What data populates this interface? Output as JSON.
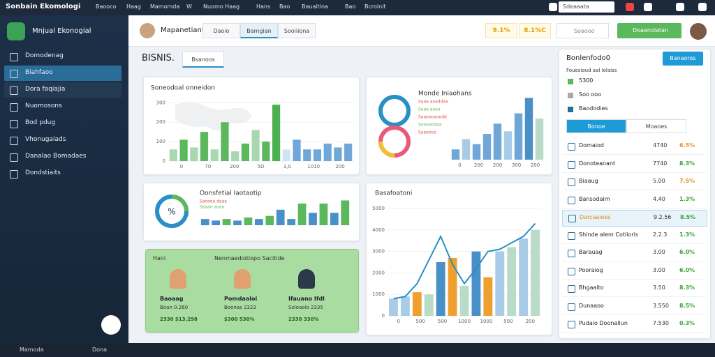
{
  "topbar": {
    "title": "Sonbain Ekomologi",
    "nav": [
      "Baooco",
      "Haag",
      "Mamomda",
      "W",
      "Nuomo Haag",
      "Hans",
      "Bao",
      "Bauaitina",
      "Bao",
      "Bcroinit"
    ],
    "search": "Sdeaaata"
  },
  "sidebar": {
    "brand": "Mnjual Ekonogial",
    "menu": [
      "Domodenag",
      "Biahfaoo",
      "Dora faqiajia",
      "Nuomosons",
      "Bod pdug",
      "Vhonugaiads",
      "Danalao Bomadaes",
      "Dondstiaits"
    ]
  },
  "header": {
    "user": "Mapanetiant",
    "tabs": [
      "Daoio",
      "Bamgian",
      "Sooiiiona"
    ],
    "stats": [
      "9.1%",
      "8.1%C"
    ],
    "search": "Soaooo",
    "button": "Doaenolatan"
  },
  "section": {
    "title": "BISNIS.",
    "tab": "Bsanoos"
  },
  "charts": [
    {
      "type": "bar",
      "title": "Soneodoal onneidon",
      "values": [
        60,
        110,
        70,
        150,
        60,
        200,
        50,
        90,
        160,
        100,
        290,
        60,
        110,
        60,
        60,
        90,
        70,
        90
      ],
      "colors": [
        "#a9d8b0",
        "#5cb85c",
        "#a9d8b0",
        "#5cb85c",
        "#a9d8b0",
        "#5cb85c",
        "#a9d8b0",
        "#5cb85c",
        "#a9d8b0",
        "#5cb85c",
        "#4caf50",
        "#cfe6f2",
        "#6fa8d8",
        "#6fa8d8",
        "#6fa8d8",
        "#6fa8d8",
        "#6fa8d8",
        "#6fa8d8"
      ],
      "ylim": [
        0,
        330
      ],
      "yticks": [
        0,
        100,
        200,
        300
      ],
      "xlabels": [
        "0",
        "70",
        "200",
        "5D",
        "3,0",
        "1010",
        "200"
      ]
    },
    {
      "type": "bar",
      "title": "Monde Iniaohans",
      "notes": [
        "Saaa aaaddaa",
        "Saaa aaao",
        "Saaoooaoodd",
        "Sooooodaa",
        "Saaoooa"
      ],
      "values": [
        40,
        80,
        60,
        100,
        140,
        110,
        180,
        240,
        160
      ],
      "colors": [
        "#6fa8d8",
        "#a8cce8",
        "#6fa8d8",
        "#6fa8d8",
        "#6fa8d8",
        "#a8cce8",
        "#6fa8d8",
        "#4a90c8",
        "#b9dcc8"
      ],
      "ylim": [
        0,
        260
      ],
      "xlabels": [
        "0",
        "200",
        "200",
        "300",
        "200"
      ]
    },
    {
      "type": "bar",
      "title": "Oonsfetial Iaotaotip",
      "gauge": "%",
      "notes": [
        "Saoooa daaa",
        "Saaao aoaa"
      ],
      "values": [
        20,
        15,
        20,
        15,
        25,
        20,
        30,
        50,
        20,
        70,
        40,
        70,
        40,
        80
      ],
      "colors": [
        "#4a90c8",
        "#4a90c8",
        "#5cb85c",
        "#4a90c8",
        "#5cb85c",
        "#4a90c8",
        "#5cb85c",
        "#4a90c8",
        "#4a90c8",
        "#5cb85c",
        "#4a90c8",
        "#5cb85c",
        "#4a90c8",
        "#5cb85c"
      ],
      "ylim": [
        0,
        90
      ]
    },
    {
      "type": "bar",
      "title": "Basafoatoni",
      "values": [
        800,
        900,
        1100,
        1000,
        2500,
        2700,
        1400,
        3000,
        1800,
        3000,
        3200,
        3600,
        4000
      ],
      "colors": [
        "#a8cce8",
        "#a8cce8",
        "#f0a030",
        "#b9dcc8",
        "#4a90c8",
        "#f0a030",
        "#b9dcc8",
        "#4a90c8",
        "#f0a030",
        "#a8cce8",
        "#b9dcc8",
        "#a8cce8",
        "#b9dcc8"
      ],
      "line": [
        800,
        900,
        1500,
        2600,
        3700,
        2400,
        1500,
        2200,
        3000,
        3100,
        3400,
        3700,
        4300
      ],
      "ylim": [
        0,
        5000
      ],
      "yticks": [
        0,
        1000,
        2000,
        3000,
        4000,
        5000
      ],
      "xlabels": [
        "0",
        "500",
        "500",
        "1000",
        "1000",
        "500",
        "200"
      ]
    }
  ],
  "promo": {
    "label": "Hani",
    "title": "Nenmaediotiopo Sacitide",
    "cards": [
      {
        "name": "Baoaag",
        "sub": "Boan 0.260",
        "foot": "2330 $13,298"
      },
      {
        "name": "Pomdaaloi",
        "sub": "Boonas 2323",
        "foot": "$300 530%"
      },
      {
        "name": "Ifauano Ifdl",
        "sub": "Soloaoio 2335",
        "foot": "2330 330%"
      }
    ]
  },
  "side_panel": {
    "title": "Bonlenfodo0",
    "button": "Banaores",
    "subtitle": "Fouesioud aal Iolaiss",
    "items": [
      "5300",
      "Soo ooo",
      "Baododies"
    ],
    "tabs": [
      "Bonoe",
      "Moaoes"
    ],
    "rows": [
      {
        "name": "Domaiod",
        "value": "4740",
        "pct": "6.5%",
        "color": "#f08c20"
      },
      {
        "name": "Donoteanant",
        "value": "7740",
        "pct": "8.3%",
        "color": "#3aa33a"
      },
      {
        "name": "Biaaug",
        "value": "5.00",
        "pct": "7.5%",
        "color": "#f08c20"
      },
      {
        "name": "Bansodaim",
        "value": "4.40",
        "pct": "1.3%",
        "color": "#3aa33a"
      },
      {
        "name": "Darcaaioes",
        "value": "9.2.56",
        "pct": "8.5%",
        "color": "#3aa33a"
      },
      {
        "name": "Shinde alem Cotlioris",
        "value": "2.2.3",
        "pct": "1.3%",
        "color": "#3aa33a"
      },
      {
        "name": "Barauag",
        "value": "3.00",
        "pct": "6.0%",
        "color": "#3aa33a"
      },
      {
        "name": "Pooraiog",
        "value": "3.00",
        "pct": "6.0%",
        "color": "#3aa33a"
      },
      {
        "name": "Bhgaaito",
        "value": "3.50",
        "pct": "8.3%",
        "color": "#3aa33a"
      },
      {
        "name": "Dunaaoo",
        "value": "3.550",
        "pct": "8.5%",
        "color": "#3aa33a"
      },
      {
        "name": "Pudaio Doonallun",
        "value": "7.530",
        "pct": "0.3%",
        "color": "#3aa33a"
      }
    ]
  },
  "taskbar": {
    "items": [
      "Mamoda",
      "Dona"
    ]
  }
}
